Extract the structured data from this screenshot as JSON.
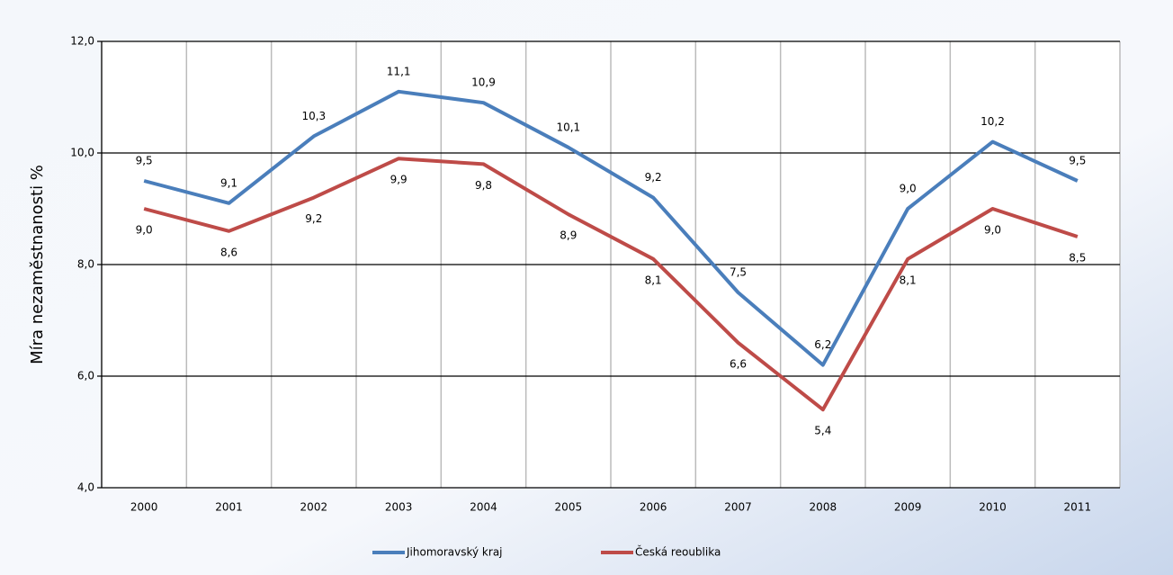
{
  "chart_data": {
    "type": "line",
    "y_label": "Míra nezaměstnanosti %",
    "categories": [
      "2000",
      "2001",
      "2002",
      "2003",
      "2004",
      "2005",
      "2006",
      "2007",
      "2008",
      "2009",
      "2010",
      "2011"
    ],
    "series": [
      {
        "name": "Jihomoravský kraj",
        "color": "#4a7ebb",
        "values": [
          9.5,
          9.1,
          10.3,
          11.1,
          10.9,
          10.1,
          9.2,
          7.5,
          6.2,
          9.0,
          10.2,
          9.5
        ],
        "value_labels": [
          "9,5",
          "9,1",
          "10,3",
          "11,1",
          "10,9",
          "10,1",
          "9,2",
          "7,5",
          "6,2",
          "9,0",
          "10,2",
          "9,5"
        ]
      },
      {
        "name": "Česká reoublika",
        "color": "#be4b48",
        "values": [
          9.0,
          8.6,
          9.2,
          9.9,
          9.8,
          8.9,
          8.1,
          6.6,
          5.4,
          8.1,
          9.0,
          8.5
        ],
        "value_labels": [
          "9,0",
          "8,6",
          "9,2",
          "9,9",
          "9,8",
          "8,9",
          "8,1",
          "6,6",
          "5,4",
          "8,1",
          "9,0",
          "8,5"
        ]
      }
    ],
    "ylim": [
      4,
      12
    ],
    "yticks": [
      {
        "value": 4,
        "label": "4,0"
      },
      {
        "value": 6,
        "label": "6,0"
      },
      {
        "value": 8,
        "label": "8,0"
      },
      {
        "value": 10,
        "label": "10,0"
      },
      {
        "value": 12,
        "label": "12,0"
      }
    ],
    "grid": true,
    "legend": "bottom"
  }
}
